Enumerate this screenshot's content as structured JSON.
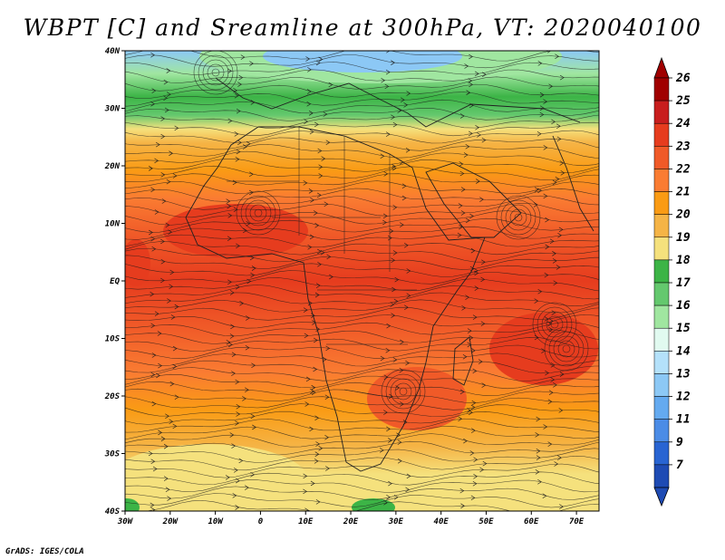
{
  "title": "WBPT [C] and Sreamline at 300hPa, VT: 2020040100",
  "credit": "GrADS: IGES/COLA",
  "map": {
    "lon_range": [
      -30,
      75
    ],
    "lat_range": [
      -40,
      40
    ],
    "lat_ticks": [
      {
        "value": 40,
        "label": "40N"
      },
      {
        "value": 30,
        "label": "30N"
      },
      {
        "value": 20,
        "label": "20N"
      },
      {
        "value": 10,
        "label": "10N"
      },
      {
        "value": 0,
        "label": "EQ"
      },
      {
        "value": -10,
        "label": "10S"
      },
      {
        "value": -20,
        "label": "20S"
      },
      {
        "value": -30,
        "label": "30S"
      },
      {
        "value": -40,
        "label": "40S"
      }
    ],
    "lon_ticks": [
      {
        "value": -30,
        "label": "30W"
      },
      {
        "value": -20,
        "label": "20W"
      },
      {
        "value": -10,
        "label": "10W"
      },
      {
        "value": 0,
        "label": "0"
      },
      {
        "value": 10,
        "label": "10E"
      },
      {
        "value": 20,
        "label": "20E"
      },
      {
        "value": 30,
        "label": "30E"
      },
      {
        "value": 40,
        "label": "40E"
      },
      {
        "value": 50,
        "label": "50E"
      },
      {
        "value": 60,
        "label": "60E"
      },
      {
        "value": 70,
        "label": "70E"
      }
    ]
  },
  "colorbar": {
    "labels": [
      "26",
      "25",
      "24",
      "23",
      "22",
      "21",
      "20",
      "19",
      "18",
      "17",
      "16",
      "15",
      "14",
      "13",
      "12",
      "11",
      "9",
      "7"
    ],
    "colors": [
      "#a00000",
      "#c81e1e",
      "#e63c1e",
      "#f05a28",
      "#fa7c32",
      "#fa9b14",
      "#f5b446",
      "#f5e17d",
      "#3cb446",
      "#64c86e",
      "#a0e6a0",
      "#e1faf0",
      "#b4e1fa",
      "#8cc8f5",
      "#64aaf0",
      "#4b8ce6",
      "#2864d2",
      "#1e4bb4"
    ]
  }
}
